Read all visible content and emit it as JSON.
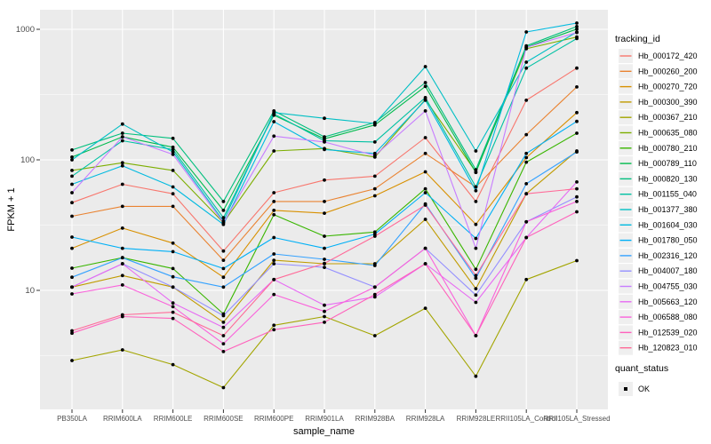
{
  "chart_data": {
    "type": "line",
    "title": "",
    "xlabel": "sample_name",
    "ylabel": "FPKM + 1",
    "y_scale": "log10",
    "y_ticks": [
      10,
      100,
      1000
    ],
    "y_tick_labels": [
      "10",
      "100",
      "1000"
    ],
    "y_minor_ticks": [
      3.162,
      31.62,
      316.2
    ],
    "ylim": [
      1.2,
      1400
    ],
    "x_categories": [
      "PB350LA",
      "RRIM600LA",
      "RRIM600LE",
      "RRIM600SE",
      "RRIM600PE",
      "RRIM901LA",
      "RRIM928BA",
      "RRIM928LA",
      "RRIM928LE",
      "RRII105LA_Control",
      "RRII105LA_Stressed"
    ],
    "legend": {
      "tracking_title": "tracking_id",
      "quant_title": "quant_status",
      "quant_label": "OK",
      "quant_marker_color": "#000000"
    },
    "panel_bg": "#EBEBEB",
    "grid_color": "#FFFFFF",
    "point_color": "#000000",
    "tick_label_color": "#4D4D4D",
    "series": [
      {
        "name": "Hb_000172_420",
        "color": "#F8766D",
        "values": [
          47,
          65,
          55,
          20,
          56,
          70,
          75,
          148,
          48,
          286,
          504
        ]
      },
      {
        "name": "Hb_000260_200",
        "color": "#EA8331",
        "values": [
          37,
          44,
          44,
          17,
          48,
          48,
          60,
          112,
          62,
          156,
          362
        ]
      },
      {
        "name": "Hb_000270_720",
        "color": "#D89000",
        "values": [
          21,
          30,
          23,
          12.6,
          41,
          39,
          53,
          81,
          32,
          104,
          230
        ]
      },
      {
        "name": "Hb_000300_390",
        "color": "#C09B00",
        "values": [
          10.6,
          13,
          10.6,
          5.7,
          17,
          16,
          16,
          35,
          10.3,
          55,
          117
        ]
      },
      {
        "name": "Hb_000367_210",
        "color": "#A3A500",
        "values": [
          2.9,
          3.5,
          2.7,
          1.8,
          5.4,
          6.3,
          4.5,
          7.3,
          2.2,
          12.1,
          16.9
        ]
      },
      {
        "name": "Hb_000635_080",
        "color": "#7CAE00",
        "values": [
          83,
          95,
          83,
          33,
          117,
          122,
          105,
          290,
          81,
          710,
          872
        ]
      },
      {
        "name": "Hb_000780_210",
        "color": "#39B600",
        "values": [
          14.8,
          17.8,
          14.7,
          6.6,
          38,
          26,
          28,
          60,
          14.5,
          96,
          160
        ]
      },
      {
        "name": "Hb_000789_110",
        "color": "#00BB4E",
        "values": [
          105,
          150,
          125,
          41,
          220,
          145,
          185,
          365,
          80,
          730,
          1005
        ]
      },
      {
        "name": "Hb_000820_130",
        "color": "#00BF7D",
        "values": [
          119,
          160,
          146,
          48,
          237,
          150,
          193,
          391,
          84,
          746,
          1050
        ]
      },
      {
        "name": "Hb_001155_040",
        "color": "#00C1A3",
        "values": [
          75,
          140,
          120,
          36,
          225,
          140,
          137,
          300,
          62,
          504,
          850
        ]
      },
      {
        "name": "Hb_001377_380",
        "color": "#00BFC4",
        "values": [
          100,
          188,
          115,
          34,
          230,
          208,
          190,
          518,
          117,
          560,
          954
        ]
      },
      {
        "name": "Hb_001604_030",
        "color": "#00BAE0",
        "values": [
          65,
          90,
          62,
          32,
          196,
          120,
          112,
          286,
          58,
          954,
          1116
        ]
      },
      {
        "name": "Hb_001780_050",
        "color": "#00B0F6",
        "values": [
          25.6,
          21,
          19.8,
          14.7,
          25.4,
          21,
          27,
          56,
          25,
          112,
          197
        ]
      },
      {
        "name": "Hb_002316_120",
        "color": "#35A2FF",
        "values": [
          12.6,
          17.8,
          12.7,
          10.6,
          19,
          17.3,
          15.5,
          46,
          12.4,
          65.6,
          115
        ]
      },
      {
        "name": "Hb_004007_180",
        "color": "#9590FF",
        "values": [
          10.6,
          16,
          10.6,
          6.4,
          16,
          15,
          10.6,
          21,
          9.2,
          33.5,
          52
        ]
      },
      {
        "name": "Hb_004755_030",
        "color": "#C77CFF",
        "values": [
          56,
          150,
          110,
          33,
          152,
          137,
          108,
          237,
          21,
          727,
          945
        ]
      },
      {
        "name": "Hb_005663_120",
        "color": "#E76BF3",
        "values": [
          10.6,
          16,
          8,
          5.2,
          12.1,
          7.7,
          8.9,
          16,
          8.1,
          25.4,
          67.7
        ]
      },
      {
        "name": "Hb_006588_080",
        "color": "#FA62DB",
        "values": [
          9.4,
          11,
          7.5,
          3.9,
          9.3,
          6.9,
          10.6,
          21,
          4.5,
          33.5,
          48
        ]
      },
      {
        "name": "Hb_012539_020",
        "color": "#FF62BC",
        "values": [
          4.7,
          6.3,
          6.1,
          3.4,
          5.0,
          5.7,
          9.3,
          16,
          4.5,
          25.4,
          40
        ]
      },
      {
        "name": "Hb_120823_010",
        "color": "#FF6A98",
        "values": [
          4.9,
          6.5,
          6.8,
          4.5,
          12.1,
          16.1,
          26,
          45,
          13,
          55,
          60
        ]
      }
    ]
  }
}
